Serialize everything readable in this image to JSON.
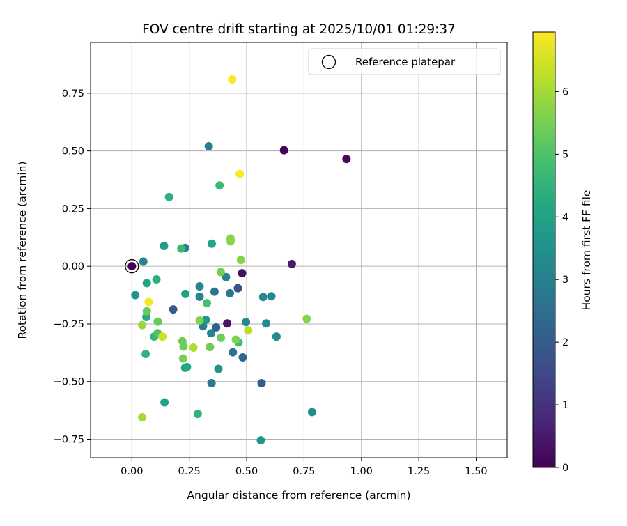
{
  "chart_data": {
    "type": "scatter",
    "title": "FOV centre drift starting at 2025/10/01 01:29:37",
    "xlabel": "Angular distance from reference (arcmin)",
    "ylabel": "Rotation from reference (arcmin)",
    "xlim": [
      -0.18,
      1.635
    ],
    "ylim": [
      -0.83,
      0.97
    ],
    "xticks": [
      0.0,
      0.25,
      0.5,
      0.75,
      1.0,
      1.25,
      1.5
    ],
    "xtick_labels": [
      "0.00",
      "0.25",
      "0.50",
      "0.75",
      "1.00",
      "1.25",
      "1.50"
    ],
    "yticks": [
      -0.75,
      -0.5,
      -0.25,
      0.0,
      0.25,
      0.5,
      0.75
    ],
    "ytick_labels": [
      "−0.75",
      "−0.50",
      "−0.25",
      "0.00",
      "0.25",
      "0.50",
      "0.75"
    ],
    "grid": true,
    "legend": {
      "location": "top-right",
      "entries": [
        "Reference platepar"
      ]
    },
    "reference_point": {
      "x": 0.0,
      "y": 0.0,
      "label": "Reference platepar"
    },
    "colorbar": {
      "label": "Hours from first FF file",
      "range": [
        0,
        6.95
      ],
      "ticks": [
        0,
        1,
        2,
        3,
        4,
        5,
        6
      ],
      "tick_labels": [
        "0",
        "1",
        "2",
        "3",
        "4",
        "5",
        "6"
      ],
      "colormap": "viridis"
    },
    "points": [
      {
        "x": 0.0,
        "y": 0.0,
        "hours": 0.0
      },
      {
        "x": 0.663,
        "y": 0.503,
        "hours": 0.1
      },
      {
        "x": 0.935,
        "y": 0.465,
        "hours": 0.15
      },
      {
        "x": 0.697,
        "y": 0.01,
        "hours": 0.5
      },
      {
        "x": 0.48,
        "y": -0.03,
        "hours": 0.3
      },
      {
        "x": 0.415,
        "y": -0.248,
        "hours": 0.4
      },
      {
        "x": 0.462,
        "y": -0.095,
        "hours": 1.8
      },
      {
        "x": 0.18,
        "y": -0.187,
        "hours": 2.0
      },
      {
        "x": 0.565,
        "y": -0.507,
        "hours": 2.0
      },
      {
        "x": 0.367,
        "y": -0.265,
        "hours": 2.2
      },
      {
        "x": 0.483,
        "y": -0.395,
        "hours": 2.3
      },
      {
        "x": 0.44,
        "y": -0.373,
        "hours": 2.6
      },
      {
        "x": 0.36,
        "y": -0.11,
        "hours": 2.7
      },
      {
        "x": 0.347,
        "y": -0.507,
        "hours": 2.8
      },
      {
        "x": 0.427,
        "y": -0.117,
        "hours": 2.8
      },
      {
        "x": 0.31,
        "y": -0.26,
        "hours": 2.9
      },
      {
        "x": 0.335,
        "y": 0.52,
        "hours": 3.0
      },
      {
        "x": 0.232,
        "y": 0.08,
        "hours": 3.0
      },
      {
        "x": 0.05,
        "y": 0.02,
        "hours": 3.1
      },
      {
        "x": 0.41,
        "y": -0.047,
        "hours": 3.1
      },
      {
        "x": 0.295,
        "y": -0.087,
        "hours": 3.2
      },
      {
        "x": 0.295,
        "y": -0.132,
        "hours": 3.2
      },
      {
        "x": 0.345,
        "y": -0.29,
        "hours": 3.2
      },
      {
        "x": 0.497,
        "y": -0.242,
        "hours": 3.3
      },
      {
        "x": 0.572,
        "y": -0.133,
        "hours": 3.3
      },
      {
        "x": 0.608,
        "y": -0.13,
        "hours": 3.3
      },
      {
        "x": 0.585,
        "y": -0.248,
        "hours": 3.3
      },
      {
        "x": 0.63,
        "y": -0.305,
        "hours": 3.3
      },
      {
        "x": 0.785,
        "y": -0.632,
        "hours": 3.4
      },
      {
        "x": 0.015,
        "y": -0.125,
        "hours": 3.5
      },
      {
        "x": 0.377,
        "y": -0.445,
        "hours": 3.5
      },
      {
        "x": 0.562,
        "y": -0.755,
        "hours": 3.6
      },
      {
        "x": 0.322,
        "y": -0.232,
        "hours": 3.7
      },
      {
        "x": 0.14,
        "y": 0.088,
        "hours": 3.8
      },
      {
        "x": 0.233,
        "y": -0.12,
        "hours": 3.9
      },
      {
        "x": 0.232,
        "y": -0.44,
        "hours": 4.0
      },
      {
        "x": 0.142,
        "y": -0.59,
        "hours": 4.0
      },
      {
        "x": 0.348,
        "y": 0.098,
        "hours": 4.1
      },
      {
        "x": 0.065,
        "y": -0.073,
        "hours": 4.1
      },
      {
        "x": 0.063,
        "y": -0.22,
        "hours": 4.2
      },
      {
        "x": 0.24,
        "y": -0.437,
        "hours": 4.2
      },
      {
        "x": 0.162,
        "y": 0.3,
        "hours": 4.4
      },
      {
        "x": 0.107,
        "y": -0.057,
        "hours": 4.4
      },
      {
        "x": 0.06,
        "y": -0.38,
        "hours": 4.5
      },
      {
        "x": 0.287,
        "y": -0.64,
        "hours": 4.5
      },
      {
        "x": 0.097,
        "y": -0.305,
        "hours": 4.6
      },
      {
        "x": 0.382,
        "y": 0.35,
        "hours": 4.7
      },
      {
        "x": 0.215,
        "y": 0.077,
        "hours": 4.7
      },
      {
        "x": 0.465,
        "y": -0.33,
        "hours": 4.8
      },
      {
        "x": 0.327,
        "y": -0.16,
        "hours": 4.9
      },
      {
        "x": 0.112,
        "y": -0.29,
        "hours": 5.0
      },
      {
        "x": 0.065,
        "y": -0.195,
        "hours": 5.3
      },
      {
        "x": 0.113,
        "y": -0.24,
        "hours": 5.3
      },
      {
        "x": 0.22,
        "y": -0.325,
        "hours": 5.4
      },
      {
        "x": 0.225,
        "y": -0.348,
        "hours": 5.4
      },
      {
        "x": 0.223,
        "y": -0.4,
        "hours": 5.5
      },
      {
        "x": 0.387,
        "y": -0.025,
        "hours": 5.5
      },
      {
        "x": 0.388,
        "y": -0.31,
        "hours": 5.4
      },
      {
        "x": 0.34,
        "y": -0.35,
        "hours": 5.4
      },
      {
        "x": 0.295,
        "y": -0.235,
        "hours": 5.6
      },
      {
        "x": 0.453,
        "y": -0.318,
        "hours": 5.6
      },
      {
        "x": 0.43,
        "y": 0.12,
        "hours": 5.7
      },
      {
        "x": 0.43,
        "y": 0.108,
        "hours": 5.7
      },
      {
        "x": 0.475,
        "y": 0.027,
        "hours": 5.7
      },
      {
        "x": 0.762,
        "y": -0.228,
        "hours": 5.7
      },
      {
        "x": 0.045,
        "y": -0.255,
        "hours": 5.9
      },
      {
        "x": 0.045,
        "y": -0.655,
        "hours": 6.0
      },
      {
        "x": 0.268,
        "y": -0.353,
        "hours": 6.1
      },
      {
        "x": 0.507,
        "y": -0.278,
        "hours": 6.2
      },
      {
        "x": 0.133,
        "y": -0.305,
        "hours": 6.4
      },
      {
        "x": 0.073,
        "y": -0.155,
        "hours": 6.9
      },
      {
        "x": 0.437,
        "y": 0.81,
        "hours": 6.95
      },
      {
        "x": 0.47,
        "y": 0.4,
        "hours": 6.95
      }
    ]
  }
}
